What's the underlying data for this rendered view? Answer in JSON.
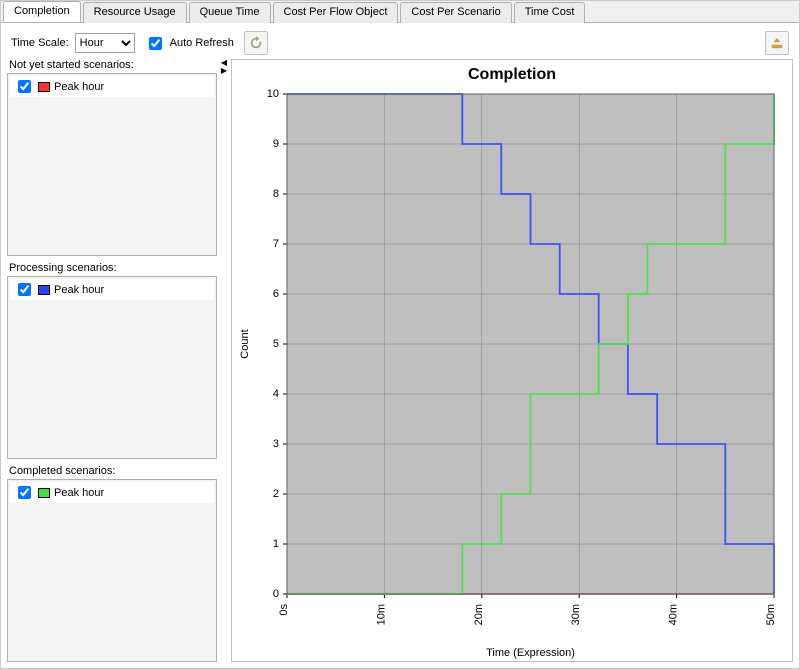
{
  "tabs": [
    {
      "label": "Completion",
      "active": true
    },
    {
      "label": "Resource Usage",
      "active": false
    },
    {
      "label": "Queue Time",
      "active": false
    },
    {
      "label": "Cost Per Flow Object",
      "active": false
    },
    {
      "label": "Cost Per Scenario",
      "active": false
    },
    {
      "label": "Time Cost",
      "active": false
    }
  ],
  "toolbar": {
    "timescale_label": "Time Scale:",
    "timescale_value": "Hour",
    "auto_refresh_label": "Auto Refresh",
    "auto_refresh_checked": true
  },
  "groups": {
    "not_started": {
      "header": "Not yet started scenarios:",
      "item_label": "Peak hour",
      "item_checked": true,
      "swatch_color": "#ff3030"
    },
    "processing": {
      "header": "Processing scenarios:",
      "item_label": "Peak hour",
      "item_checked": true,
      "swatch_color": "#3040ff"
    },
    "completed": {
      "header": "Completed scenarios:",
      "item_label": "Peak hour",
      "item_checked": true,
      "swatch_color": "#40e040"
    }
  },
  "chart": {
    "title": "Completion",
    "xlabel": "Time (Expression)",
    "ylabel": "Count",
    "plot_bg": "#bfbfbf",
    "grid_color": "#808080",
    "title_fontsize": 16,
    "x_ticks": [
      0,
      10,
      20,
      30,
      40,
      50
    ],
    "x_tick_labels": [
      "0s",
      "10m",
      "20m",
      "30m",
      "40m",
      "50m"
    ],
    "xlim": [
      0,
      50
    ],
    "y_ticks": [
      0,
      1,
      2,
      3,
      4,
      5,
      6,
      7,
      8,
      9,
      10
    ],
    "ylim": [
      0,
      10
    ],
    "series": [
      {
        "name": "not_started",
        "color": "#a03030",
        "line_width": 1.5,
        "points": [
          [
            0,
            0
          ],
          [
            50,
            0
          ]
        ]
      },
      {
        "name": "processing",
        "color": "#4050ff",
        "line_width": 1.8,
        "points": [
          [
            0,
            10
          ],
          [
            18,
            10
          ],
          [
            18,
            9
          ],
          [
            22,
            9
          ],
          [
            22,
            8
          ],
          [
            25,
            8
          ],
          [
            25,
            7
          ],
          [
            28,
            7
          ],
          [
            28,
            6
          ],
          [
            32,
            6
          ],
          [
            32,
            5
          ],
          [
            35,
            5
          ],
          [
            35,
            4
          ],
          [
            38,
            4
          ],
          [
            38,
            3
          ],
          [
            45,
            3
          ],
          [
            45,
            1
          ],
          [
            50,
            1
          ],
          [
            50,
            0
          ]
        ]
      },
      {
        "name": "completed",
        "color": "#50e050",
        "line_width": 1.8,
        "points": [
          [
            0,
            0
          ],
          [
            18,
            0
          ],
          [
            18,
            1
          ],
          [
            22,
            1
          ],
          [
            22,
            2
          ],
          [
            25,
            2
          ],
          [
            25,
            4
          ],
          [
            28,
            4
          ],
          [
            28,
            4
          ],
          [
            32,
            4
          ],
          [
            32,
            5
          ],
          [
            35,
            5
          ],
          [
            35,
            6
          ],
          [
            37,
            6
          ],
          [
            37,
            7
          ],
          [
            45,
            7
          ],
          [
            45,
            9
          ],
          [
            50,
            9
          ],
          [
            50,
            10
          ]
        ]
      }
    ]
  }
}
